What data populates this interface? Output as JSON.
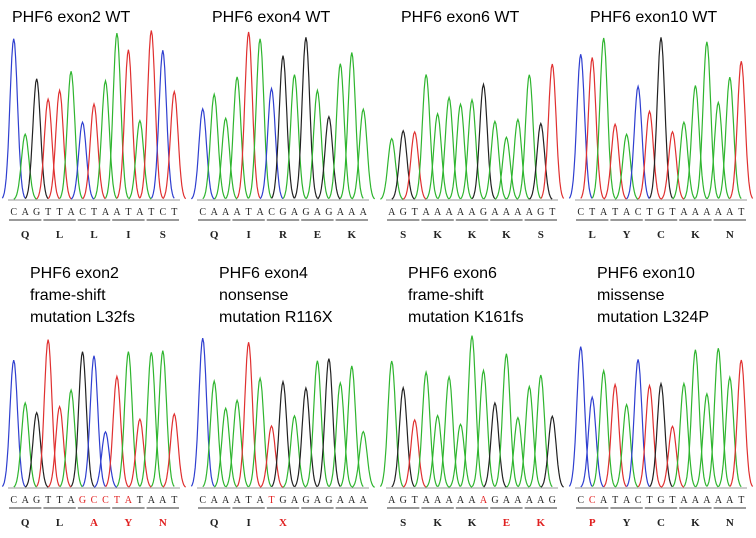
{
  "panels": [
    {
      "title": [
        "PHF6 exon2 WT"
      ],
      "sequence": "CAGTTACTAATATCT",
      "amino_acids": [
        "Q",
        "L",
        "L",
        "I",
        "S"
      ],
      "red_bases": [],
      "red_amino_acids": []
    },
    {
      "title": [
        "PHF6 exon4 WT"
      ],
      "sequence": "CAAATACGAGAGAAA",
      "amino_acids": [
        "Q",
        "I",
        "R",
        "E",
        "K"
      ],
      "red_bases": [],
      "red_amino_acids": []
    },
    {
      "title": [
        "PHF6 exon6 WT"
      ],
      "sequence": "AGTAAAAAGAAAAGT",
      "amino_acids": [
        "S",
        "K",
        "K",
        "K",
        "S"
      ],
      "red_bases": [],
      "red_amino_acids": []
    },
    {
      "title": [
        "PHF6 exon10 WT"
      ],
      "sequence": "CTATACTGTAAAAAT",
      "amino_acids": [
        "L",
        "Y",
        "C",
        "K",
        "N"
      ],
      "red_bases": [],
      "red_amino_acids": []
    },
    {
      "title": [
        "PHF6 exon2",
        "frame-shift",
        "mutation L32fs"
      ],
      "sequence": "CAGTTAGCCTATAAT",
      "amino_acids": [
        "Q",
        "L",
        "A",
        "Y",
        "N"
      ],
      "red_bases": [
        6,
        7,
        8,
        9,
        10
      ],
      "red_amino_acids": [
        2,
        3,
        4
      ]
    },
    {
      "title": [
        "PHF6 exon4",
        "nonsense",
        "mutation R116X"
      ],
      "sequence": "CAAATATGAGAGAAA",
      "amino_acids": [
        "Q",
        "I",
        "X"
      ],
      "red_bases": [
        6
      ],
      "red_amino_acids": [
        2
      ]
    },
    {
      "title": [
        "PHF6 exon6",
        "frame-shift",
        "mutation K161fs"
      ],
      "sequence": "AGTAAAAAAGAAAAG",
      "amino_acids": [
        "S",
        "K",
        "K",
        "E",
        "K"
      ],
      "red_bases": [
        8
      ],
      "red_amino_acids": [
        3,
        4
      ]
    },
    {
      "title": [
        "PHF6 exon10",
        "missense",
        "mutation L324P"
      ],
      "sequence": "CCATACTGTAAAAAT",
      "amino_acids": [
        "P",
        "Y",
        "C",
        "K",
        "N"
      ],
      "red_bases": [
        1
      ],
      "red_amino_acids": [
        0
      ]
    }
  ]
}
